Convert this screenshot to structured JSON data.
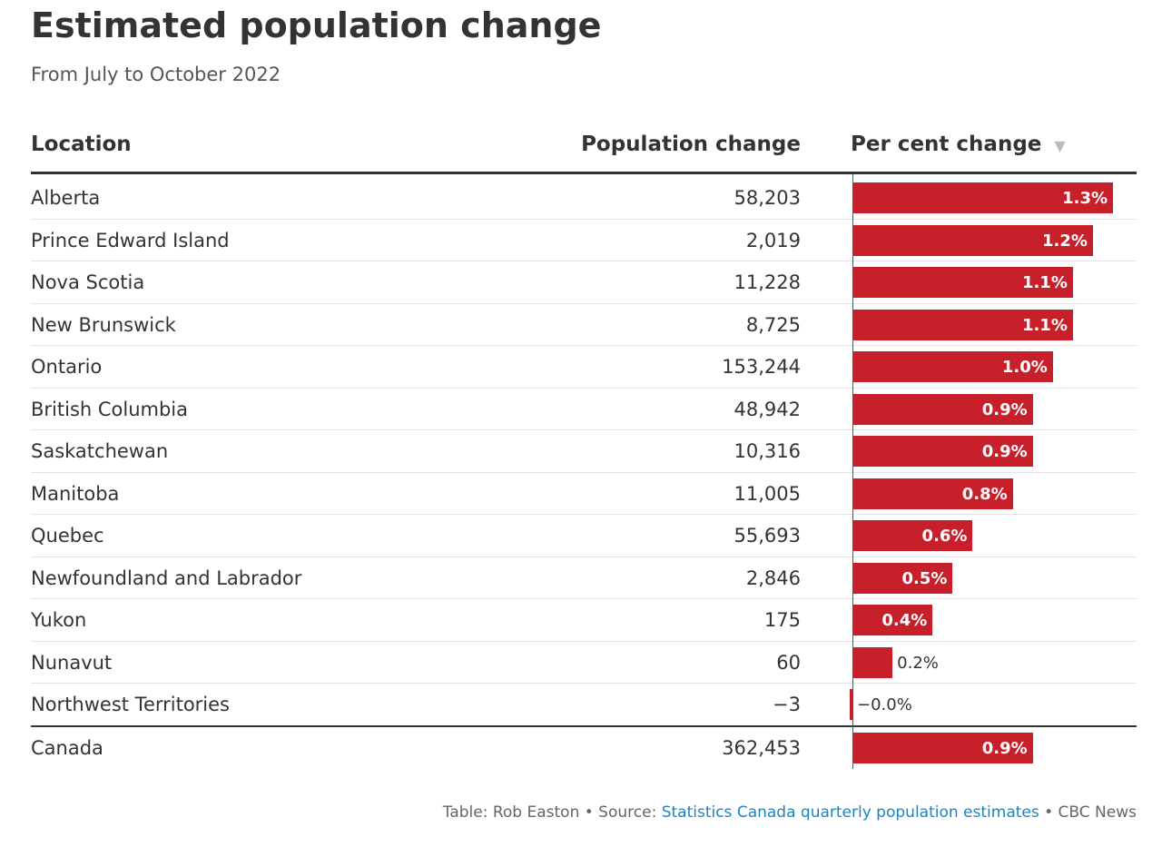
{
  "header": {
    "title": "Estimated population change",
    "subtitle": "From July to October 2022"
  },
  "table": {
    "columns": [
      "Location",
      "Population change",
      "Per cent change"
    ],
    "rows": [
      {
        "location": "Alberta",
        "population_change": "58,203",
        "per_cent_change": 1.3,
        "per_cent_label": "1.3%"
      },
      {
        "location": "Prince Edward Island",
        "population_change": "2,019",
        "per_cent_change": 1.2,
        "per_cent_label": "1.2%"
      },
      {
        "location": "Nova Scotia",
        "population_change": "11,228",
        "per_cent_change": 1.1,
        "per_cent_label": "1.1%"
      },
      {
        "location": "New Brunswick",
        "population_change": "8,725",
        "per_cent_change": 1.1,
        "per_cent_label": "1.1%"
      },
      {
        "location": "Ontario",
        "population_change": "153,244",
        "per_cent_change": 1.0,
        "per_cent_label": "1.0%"
      },
      {
        "location": "British Columbia",
        "population_change": "48,942",
        "per_cent_change": 0.9,
        "per_cent_label": "0.9%"
      },
      {
        "location": "Saskatchewan",
        "population_change": "10,316",
        "per_cent_change": 0.9,
        "per_cent_label": "0.9%"
      },
      {
        "location": "Manitoba",
        "population_change": "11,005",
        "per_cent_change": 0.8,
        "per_cent_label": "0.8%"
      },
      {
        "location": "Quebec",
        "population_change": "55,693",
        "per_cent_change": 0.6,
        "per_cent_label": "0.6%"
      },
      {
        "location": "Newfoundland and Labrador",
        "population_change": "2,846",
        "per_cent_change": 0.5,
        "per_cent_label": "0.5%"
      },
      {
        "location": "Yukon",
        "population_change": "175",
        "per_cent_change": 0.4,
        "per_cent_label": "0.4%"
      },
      {
        "location": "Nunavut",
        "population_change": "60",
        "per_cent_change": 0.2,
        "per_cent_label": "0.2%"
      },
      {
        "location": "Northwest Territories",
        "population_change": "−3",
        "per_cent_change": -0.0,
        "per_cent_label": "−0.0%"
      }
    ],
    "total": {
      "location": "Canada",
      "population_change": "362,453",
      "per_cent_change": 0.9,
      "per_cent_label": "0.9%"
    },
    "bar_color": "#c8202a"
  },
  "footer": {
    "credit": "Table: Rob Easton • Source: ",
    "source_link": "Statistics Canada quarterly population estimates",
    "outlet": " • CBC News"
  }
}
